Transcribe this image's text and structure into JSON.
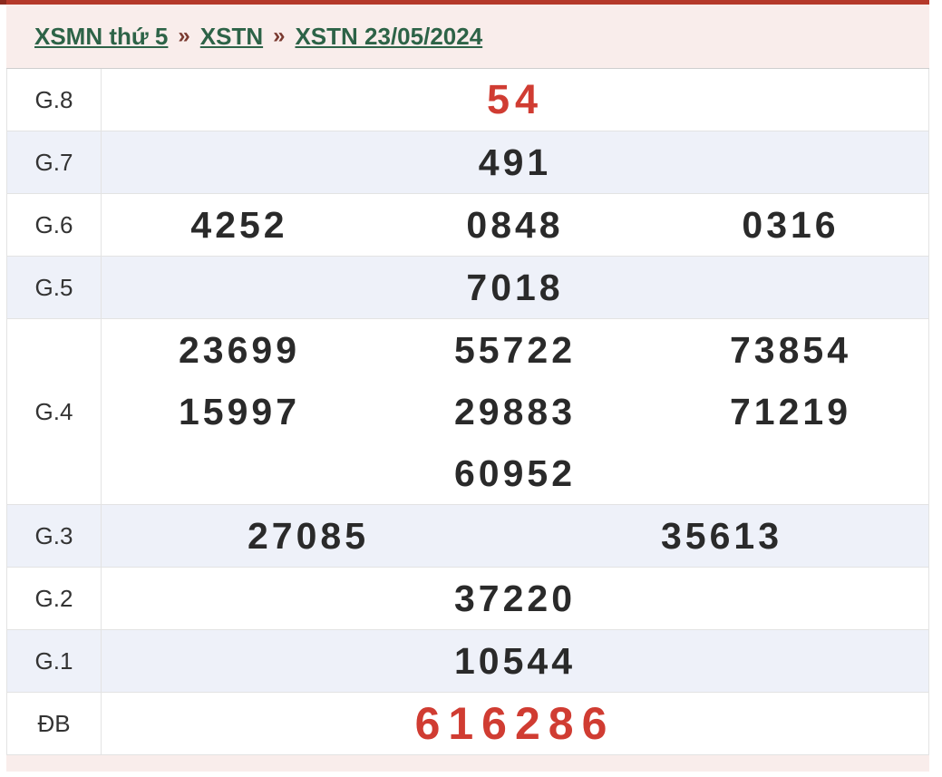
{
  "colors": {
    "top_bar": "#b5392a",
    "top_bar_cap": "#8c2a1e",
    "header_bg": "#f9edeb",
    "link_green": "#2d6347",
    "separator_red": "#7a3a30",
    "number_dark": "#2a2a2a",
    "number_red": "#d03c32",
    "row_alt_bg": "#eef1f9",
    "border": "#e3e3e3"
  },
  "breadcrumb": {
    "separator": "»",
    "items": [
      {
        "label": "XSMN thứ 5"
      },
      {
        "label": "XSTN"
      },
      {
        "label": "XSTN 23/05/2024"
      }
    ]
  },
  "results": {
    "rows": [
      {
        "label": "G.8",
        "color": "red",
        "size": "lg",
        "lines": [
          [
            "54"
          ]
        ]
      },
      {
        "label": "G.7",
        "color": "dark",
        "size": "",
        "lines": [
          [
            "491"
          ]
        ]
      },
      {
        "label": "G.6",
        "color": "dark",
        "size": "",
        "lines": [
          [
            "4252",
            "0848",
            "0316"
          ]
        ]
      },
      {
        "label": "G.5",
        "color": "dark",
        "size": "",
        "lines": [
          [
            "7018"
          ]
        ]
      },
      {
        "label": "G.4",
        "color": "dark",
        "size": "",
        "lines": [
          [
            "23699",
            "55722",
            "73854"
          ],
          [
            "15997",
            "29883",
            "71219"
          ],
          [
            "",
            "60952",
            ""
          ]
        ]
      },
      {
        "label": "G.3",
        "color": "dark",
        "size": "",
        "lines": [
          [
            "27085",
            "35613"
          ]
        ]
      },
      {
        "label": "G.2",
        "color": "dark",
        "size": "",
        "lines": [
          [
            "37220"
          ]
        ]
      },
      {
        "label": "G.1",
        "color": "dark",
        "size": "",
        "lines": [
          [
            "10544"
          ]
        ]
      },
      {
        "label": "ĐB",
        "color": "red",
        "size": "xl",
        "lines": [
          [
            "616286"
          ]
        ]
      }
    ]
  }
}
